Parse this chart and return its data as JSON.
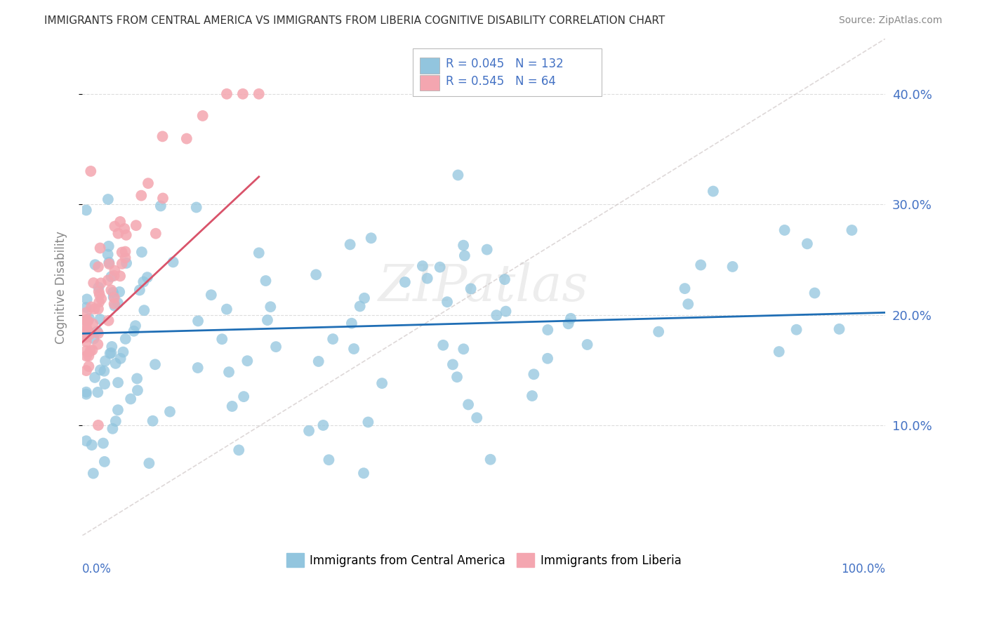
{
  "title": "IMMIGRANTS FROM CENTRAL AMERICA VS IMMIGRANTS FROM LIBERIA COGNITIVE DISABILITY CORRELATION CHART",
  "source": "Source: ZipAtlas.com",
  "ylabel": "Cognitive Disability",
  "yticks": [
    0.1,
    0.2,
    0.3,
    0.4
  ],
  "ytick_labels": [
    "10.0%",
    "20.0%",
    "30.0%",
    "40.0%"
  ],
  "xlim": [
    0.0,
    1.0
  ],
  "ylim": [
    0.0,
    0.45
  ],
  "legend_blue_r": "0.045",
  "legend_blue_n": "132",
  "legend_pink_r": "0.545",
  "legend_pink_n": "64",
  "blue_color": "#92C5DE",
  "pink_color": "#F4A6B0",
  "trendline_blue_color": "#1F6EB5",
  "trendline_pink_color": "#D9536A",
  "diagonal_color": "#D0C8C8",
  "watermark": "ZIPatlas",
  "background_color": "#FFFFFF",
  "grid_color": "#DDDDDD",
  "title_color": "#333333",
  "source_color": "#888888",
  "axis_label_color": "#4472C4",
  "ylabel_color": "#888888"
}
